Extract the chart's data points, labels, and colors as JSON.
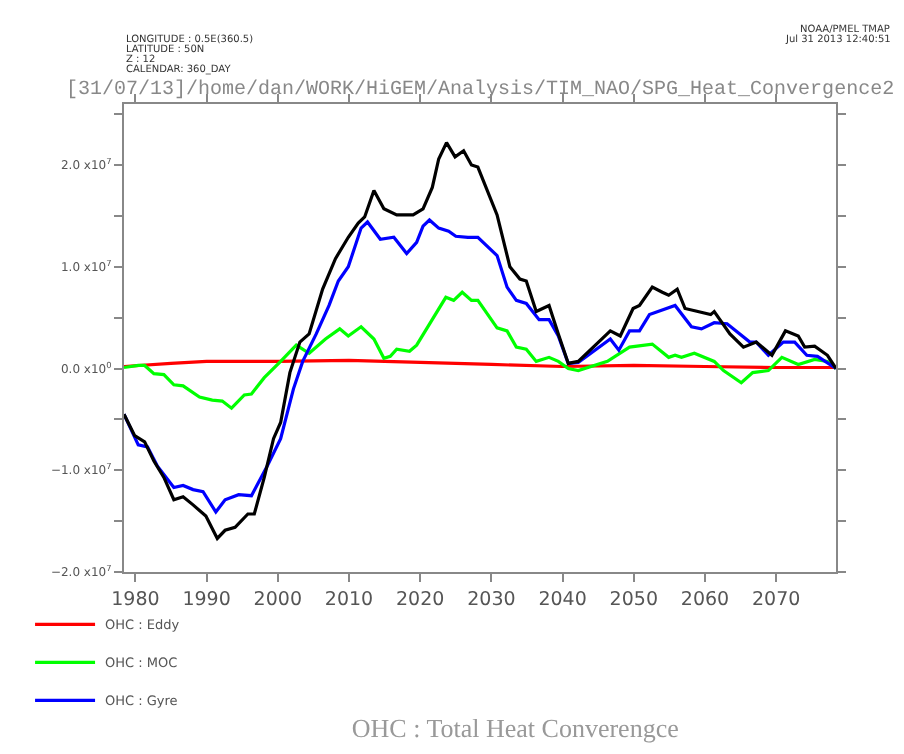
{
  "chart_data": {
    "type": "line",
    "title": "OHC : Total Heat Converengce",
    "subtitle": "[31/07/13]/home/dan/WORK/HiGEM/Analysis/TIM_NAO/SPG_Heat_Convergence2",
    "annotations": [
      "LONGITUDE : 0.5E(360.5)",
      "LATITUDE : 50N",
      "Z : 12",
      "CALENDAR: 360_DAY",
      "NOAA/PMEL TMAP",
      "Jul 31 2013 12:40:51"
    ],
    "xlim": [
      1978.4,
      2078.4
    ],
    "xticks": [
      1980,
      1990,
      2000,
      2010,
      2020,
      2030,
      2040,
      2050,
      2060,
      2070
    ],
    "ylim": [
      -20000000,
      26000000
    ],
    "yticks": [
      {
        "value": -20000000,
        "label": "−2.0 x10$^{7}$"
      },
      {
        "value": -15000000,
        "label": null
      },
      {
        "value": -10000000,
        "label": "−1.0 x10$^{7}$"
      },
      {
        "value": -5000000,
        "label": null
      },
      {
        "value": 0,
        "label": "0.0 x10$^{0}$"
      },
      {
        "value": 5000000,
        "label": null
      },
      {
        "value": 10000000,
        "label": "1.0 x10$^{7}$"
      },
      {
        "value": 15000000,
        "label": null
      },
      {
        "value": 20000000,
        "label": "2.0 x10$^{7}$"
      },
      {
        "value": 25000000,
        "label": null
      }
    ],
    "grid": false,
    "legend": "bottom left",
    "marker": "none",
    "line_style": "solid",
    "series": [
      {
        "name": "OHC : Eddy",
        "color": "#ff0000",
        "x": [
          1978.4,
          1985,
          1990,
          2000,
          2010,
          2020,
          2030,
          2040,
          2050,
          2060,
          2070,
          2078.4
        ],
        "values": [
          200000.0,
          500000.0,
          700000.0,
          700000.0,
          800000.0,
          600000.0,
          400000.0,
          200000.0,
          300000.0,
          200000.0,
          100000.0,
          100000.0
        ]
      },
      {
        "name": "OHC : MOC",
        "color": "#00ff00",
        "x": [
          1978.4,
          1980.4,
          1981.3,
          1982.6,
          1984,
          1985.4,
          1986.7,
          1989,
          1990.8,
          1992.2,
          1993.5,
          1995.3,
          1996.3,
          1998.1,
          2000.4,
          2002.6,
          2004.4,
          2006.7,
          2008.7,
          2009.9,
          2011.7,
          2013.5,
          2014.9,
          2015.8,
          2016.7,
          2018.5,
          2019.5,
          2023.6,
          2024.7,
          2025.9,
          2027.2,
          2028.1,
          2030.8,
          2032.2,
          2033.5,
          2034.9,
          2036.3,
          2038.1,
          2039.4,
          2040.8,
          2042.2,
          2046.3,
          2049.4,
          2052.6,
          2054.9,
          2055.8,
          2056.7,
          2058.5,
          2061.3,
          2062.6,
          2065.1,
          2066.7,
          2068.9,
          2070.8,
          2073.1,
          2075.4,
          2077.2,
          2078.4
        ],
        "values": [
          100000.0,
          300000.0,
          300000.0,
          -500000.0,
          -600000.0,
          -1600000.0,
          -1700000.0,
          -2800000.0,
          -3100000.0,
          -3200000.0,
          -3900000.0,
          -2600000.0,
          -2500000.0,
          -900000.0,
          700000.0,
          2300000.0,
          1500000.0,
          2900000.0,
          3900000.0,
          3200000.0,
          4100000.0,
          2900000.0,
          1000000.0,
          1200000.0,
          1900000.0,
          1700000.0,
          2300000.0,
          7000000.0,
          6700000.0,
          7500000.0,
          6700000.0,
          6700000.0,
          4000000.0,
          3700000.0,
          2100000.0,
          1900000.0,
          700000.0,
          1100000.0,
          700000.0,
          0,
          -200000.0,
          700000.0,
          2100000.0,
          2400000.0,
          1100000.0,
          1300000.0,
          1100000.0,
          1500000.0,
          700000.0,
          -200000.0,
          -1400000.0,
          -400000.0,
          -200000.0,
          1100000.0,
          400000.0,
          900000.0,
          700000.0,
          0
        ]
      },
      {
        "name": "OHC : Gyre",
        "color": "#0000ff",
        "x": [
          1978.4,
          1980.4,
          1981.7,
          1983.1,
          1985.4,
          1986.7,
          1988.1,
          1989.5,
          1991.3,
          1992.6,
          1994.5,
          1996.3,
          1998.5,
          2000.4,
          2002.2,
          2003.5,
          2005.4,
          2007.2,
          2008.5,
          2009.9,
          2011.7,
          2012.6,
          2014.4,
          2016.3,
          2018.1,
          2019.5,
          2020.4,
          2021.3,
          2022.6,
          2024,
          2025,
          2026.7,
          2028.1,
          2030.8,
          2032.2,
          2033.5,
          2034.9,
          2036.7,
          2038.1,
          2039.4,
          2040.8,
          2042.2,
          2046.7,
          2047.9,
          2049.4,
          2050.8,
          2052.2,
          2055.8,
          2058.1,
          2059.5,
          2061.3,
          2063.1,
          2066.3,
          2067.2,
          2068.9,
          2071,
          2072.6,
          2074.3,
          2075.8,
          2078.4
        ],
        "values": [
          -4500000.0,
          -7500000.0,
          -7700000.0,
          -9600000.0,
          -11700000.0,
          -11500000.0,
          -11900000.0,
          -12100000.0,
          -14100000.0,
          -12900000.0,
          -12400000.0,
          -12500000.0,
          -9600000.0,
          -6900000.0,
          -2000000.0,
          700000.0,
          3400000.0,
          6200000.0,
          8600000.0,
          10000000.0,
          13800000.0,
          14400000.0,
          12700000.0,
          12900000.0,
          11300000.0,
          12400000.0,
          14000000.0,
          14600000.0,
          13800000.0,
          13500000.0,
          13000000.0,
          12900000.0,
          12900000.0,
          11100000.0,
          8000000.0,
          6700000.0,
          6400000.0,
          4800000.0,
          4800000.0,
          3200000.0,
          500000.0,
          600000.0,
          2900000.0,
          1800000.0,
          3700000.0,
          3700000.0,
          5300000.0,
          6200000.0,
          4100000.0,
          3900000.0,
          4500000.0,
          4400000.0,
          2600000.0,
          2600000.0,
          1300000.0,
          2600000.0,
          2600000.0,
          1300000.0,
          1200000.0,
          0
        ]
      },
      {
        "color": "#000000",
        "x": [
          1978.4,
          1979.9,
          1981.3,
          1982.6,
          1984,
          1985.4,
          1986.7,
          1988.1,
          1989.9,
          1991.5,
          1992.6,
          1994,
          1995.8,
          1996.7,
          1998.1,
          1999.4,
          2000.4,
          2001.7,
          2003.1,
          2004.4,
          2006.3,
          2008.1,
          2009.9,
          2011.3,
          2012.2,
          2013.5,
          2014.9,
          2016.7,
          2019,
          2020.4,
          2021.7,
          2022.6,
          2023.7,
          2024.9,
          2026.1,
          2027.2,
          2028.1,
          2030.8,
          2032.6,
          2034,
          2034.9,
          2036.3,
          2038.1,
          2039.4,
          2040.8,
          2042.2,
          2046.7,
          2048.1,
          2049.9,
          2050.8,
          2052.6,
          2054,
          2054.9,
          2056.1,
          2057.2,
          2059,
          2060.8,
          2061.3,
          2063.5,
          2065.4,
          2067.2,
          2069.4,
          2071.3,
          2073.1,
          2074,
          2075.4,
          2077.2,
          2078.4
        ],
        "values": [
          -4500000.0,
          -6600000.0,
          -7200000.0,
          -9100000.0,
          -10700000.0,
          -12900000.0,
          -12600000.0,
          -13400000.0,
          -14500000.0,
          -16700000.0,
          -15900000.0,
          -15600000.0,
          -14300000.0,
          -14300000.0,
          -10700000.0,
          -6900000.0,
          -5300000.0,
          -400000.0,
          2600000.0,
          3400000.0,
          7800000.0,
          10800000.0,
          12900000.0,
          14300000.0,
          14900000.0,
          17500000.0,
          15700000.0,
          15100000.0,
          15100000.0,
          15700000.0,
          17800000.0,
          20600000.0,
          22200000.0,
          20800000.0,
          21400000.0,
          20000000.0,
          19800000.0,
          15100000.0,
          10000000.0,
          8800000.0,
          8600000.0,
          5600000.0,
          6200000.0,
          3400000.0,
          500000.0,
          700000.0,
          3700000.0,
          3200000.0,
          5900000.0,
          6200000.0,
          8000000.0,
          7500000.0,
          7200000.0,
          7800000.0,
          5900000.0,
          5600000.0,
          5300000.0,
          5600000.0,
          3400000.0,
          2100000.0,
          2600000.0,
          1300000.0,
          3700000.0,
          3200000.0,
          2100000.0,
          2200000.0,
          1300000.0,
          0
        ]
      }
    ]
  }
}
